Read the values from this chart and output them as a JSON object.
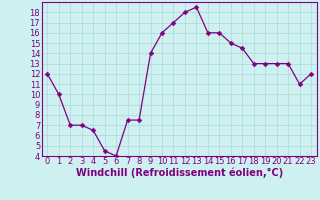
{
  "x": [
    0,
    1,
    2,
    3,
    4,
    5,
    6,
    7,
    8,
    9,
    10,
    11,
    12,
    13,
    14,
    15,
    16,
    17,
    18,
    19,
    20,
    21,
    22,
    23
  ],
  "y": [
    12,
    10,
    7,
    7,
    6.5,
    4.5,
    4,
    7.5,
    7.5,
    14,
    16,
    17,
    18,
    18.5,
    16,
    16,
    15,
    14.5,
    13,
    13,
    13,
    13,
    11,
    12
  ],
  "line_color": "#800080",
  "marker_color": "#800080",
  "bg_color": "#cff0f0",
  "grid_color": "#a8d8d8",
  "xlabel": "Windchill (Refroidissement éolien,°C)",
  "tick_color": "#800080",
  "ylim": [
    4,
    19
  ],
  "xlim": [
    -0.5,
    23.5
  ],
  "yticks": [
    4,
    5,
    6,
    7,
    8,
    9,
    10,
    11,
    12,
    13,
    14,
    15,
    16,
    17,
    18
  ],
  "xticks": [
    0,
    1,
    2,
    3,
    4,
    5,
    6,
    7,
    8,
    9,
    10,
    11,
    12,
    13,
    14,
    15,
    16,
    17,
    18,
    19,
    20,
    21,
    22,
    23
  ],
  "spine_color": "#800080",
  "tick_fontsize": 6,
  "xlabel_fontsize": 7,
  "marker_size": 2.5,
  "linewidth": 0.9
}
